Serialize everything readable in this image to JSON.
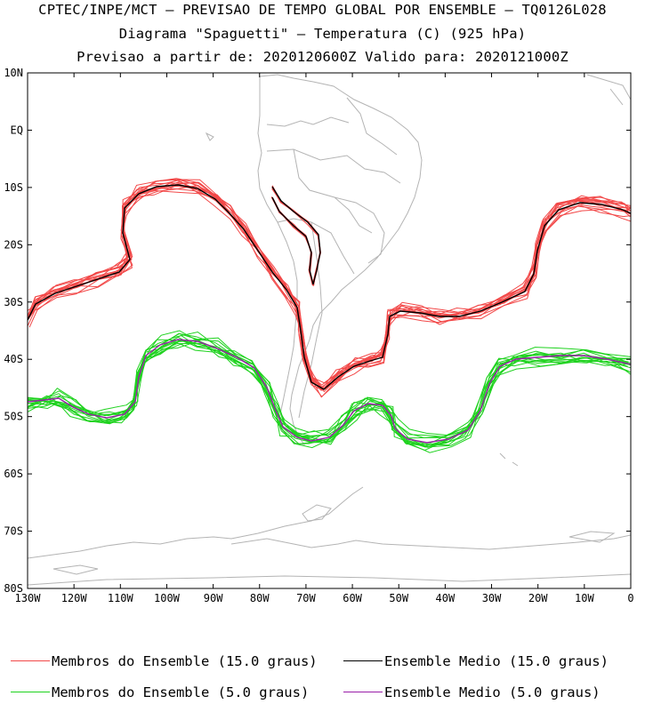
{
  "header": {
    "line1": "CPTEC/INPE/MCT – PREVISAO DE TEMPO GLOBAL POR ENSEMBLE – TQ0126L028",
    "line2": "Diagrama \"Spaguetti\" – Temperatura (C) (925 hPa)",
    "line3": "Previsao a partir de: 2020120600Z  Valido para: 2020121000Z"
  },
  "map": {
    "lat_labels": [
      "10N",
      "EQ",
      "10S",
      "20S",
      "30S",
      "40S",
      "50S",
      "60S",
      "70S",
      "80S"
    ],
    "lon_labels": [
      "130W",
      "120W",
      "110W",
      "100W",
      "90W",
      "80W",
      "70W",
      "60W",
      "50W",
      "40W",
      "30W",
      "20W",
      "10W",
      "0"
    ],
    "colors": {
      "coast": "#b4b4b4",
      "members_15": "#f24848",
      "mean_15": "#000000",
      "members_5": "#1ed21e",
      "mean_5": "#9a1ea8"
    }
  },
  "legend": {
    "members_15": "Membros do Ensemble (15.0 graus)",
    "mean_15": "Ensemble Medio (15.0 graus)",
    "members_5": "Membros do Ensemble (5.0 graus)",
    "mean_5": "Ensemble Medio (5.0 graus)"
  }
}
